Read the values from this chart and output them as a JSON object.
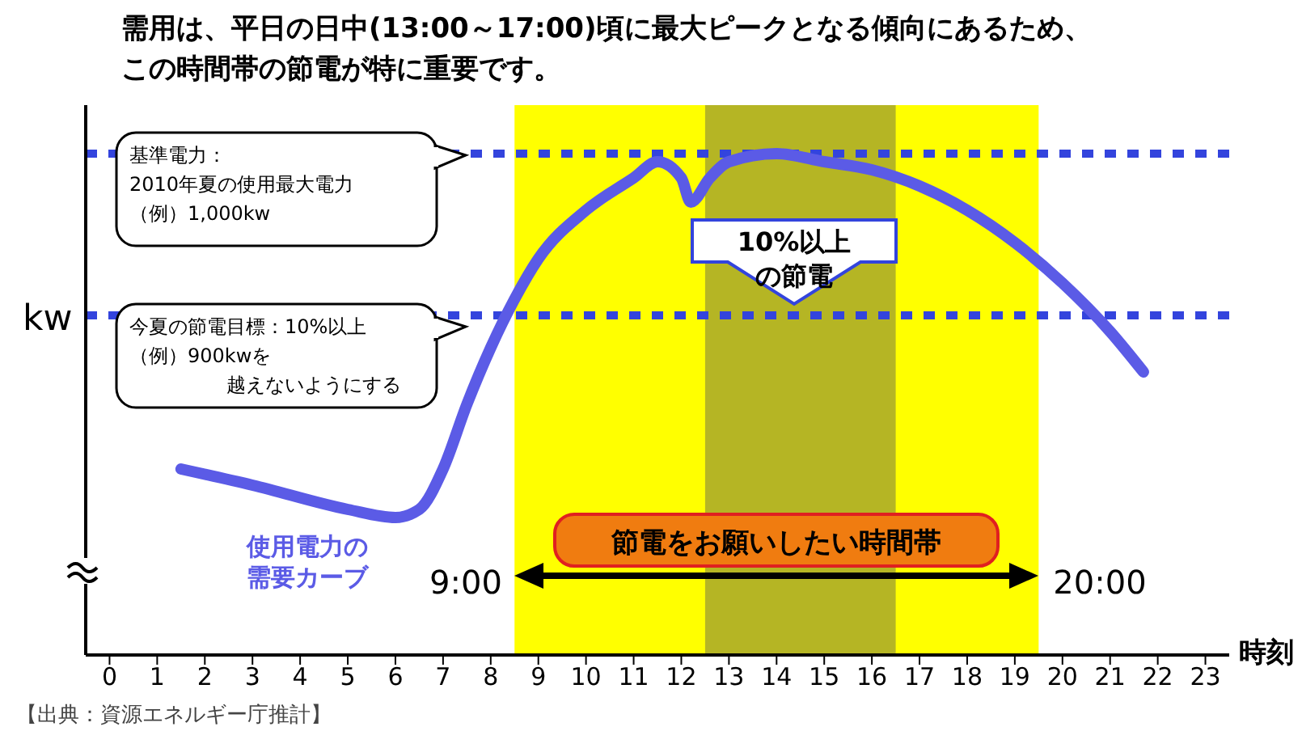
{
  "chart_data": {
    "type": "line",
    "title": "需用は、平日の日中(13:00～17:00)頃に最大ピークとなる傾向にあるため、",
    "subtitle": "この時間帯の節電が特に重要です。",
    "xlabel": "時刻",
    "ylabel": "kw",
    "x": [
      1.5,
      3,
      5,
      6,
      6.5,
      7,
      7.5,
      8,
      8.5,
      9,
      10,
      11,
      11.5,
      12,
      12.2,
      12.6,
      13,
      14,
      15,
      16,
      17,
      18,
      19,
      20,
      21,
      21.7
    ],
    "series": [
      {
        "name": "使用電力の需要カーブ",
        "color": "#5b5be6",
        "values": [
          805,
          795,
          780,
          775,
          780,
          805,
          845,
          880,
          910,
          935,
          965,
          985,
          995,
          985,
          970,
          985,
          995,
          1000,
          995,
          990,
          980,
          965,
          945,
          920,
          890,
          865
        ]
      }
    ],
    "xlim": [
      -0.5,
      23.5
    ],
    "xticks": [
      0,
      1,
      2,
      3,
      4,
      5,
      6,
      7,
      8,
      9,
      10,
      11,
      12,
      13,
      14,
      15,
      16,
      17,
      18,
      19,
      20,
      21,
      22,
      23
    ],
    "ylim": [
      690,
      1030
    ],
    "ref_lines": [
      {
        "axis": "y",
        "value": 1000,
        "label": "基準電力：2010年夏の使用最大電力（例）1,000kw",
        "color": "#3344dd",
        "line_style": "dotted"
      },
      {
        "axis": "y",
        "value": 900,
        "label": "今夏の節電目標：10%以上（例）900kwを越えないようにする",
        "color": "#3344dd",
        "line_style": "dotted"
      }
    ],
    "bands": [
      {
        "axis": "x",
        "from": 8.5,
        "to": 19.5,
        "label": "節電をお願いしたい時間帯",
        "color": "#ffff00"
      },
      {
        "axis": "x",
        "from": 12.5,
        "to": 16.5,
        "color": "#b5b524"
      }
    ],
    "annotations": [
      "10%以上の節電",
      "9:00",
      "20:00",
      "【出典：資源エネルギー庁推計】"
    ]
  }
}
